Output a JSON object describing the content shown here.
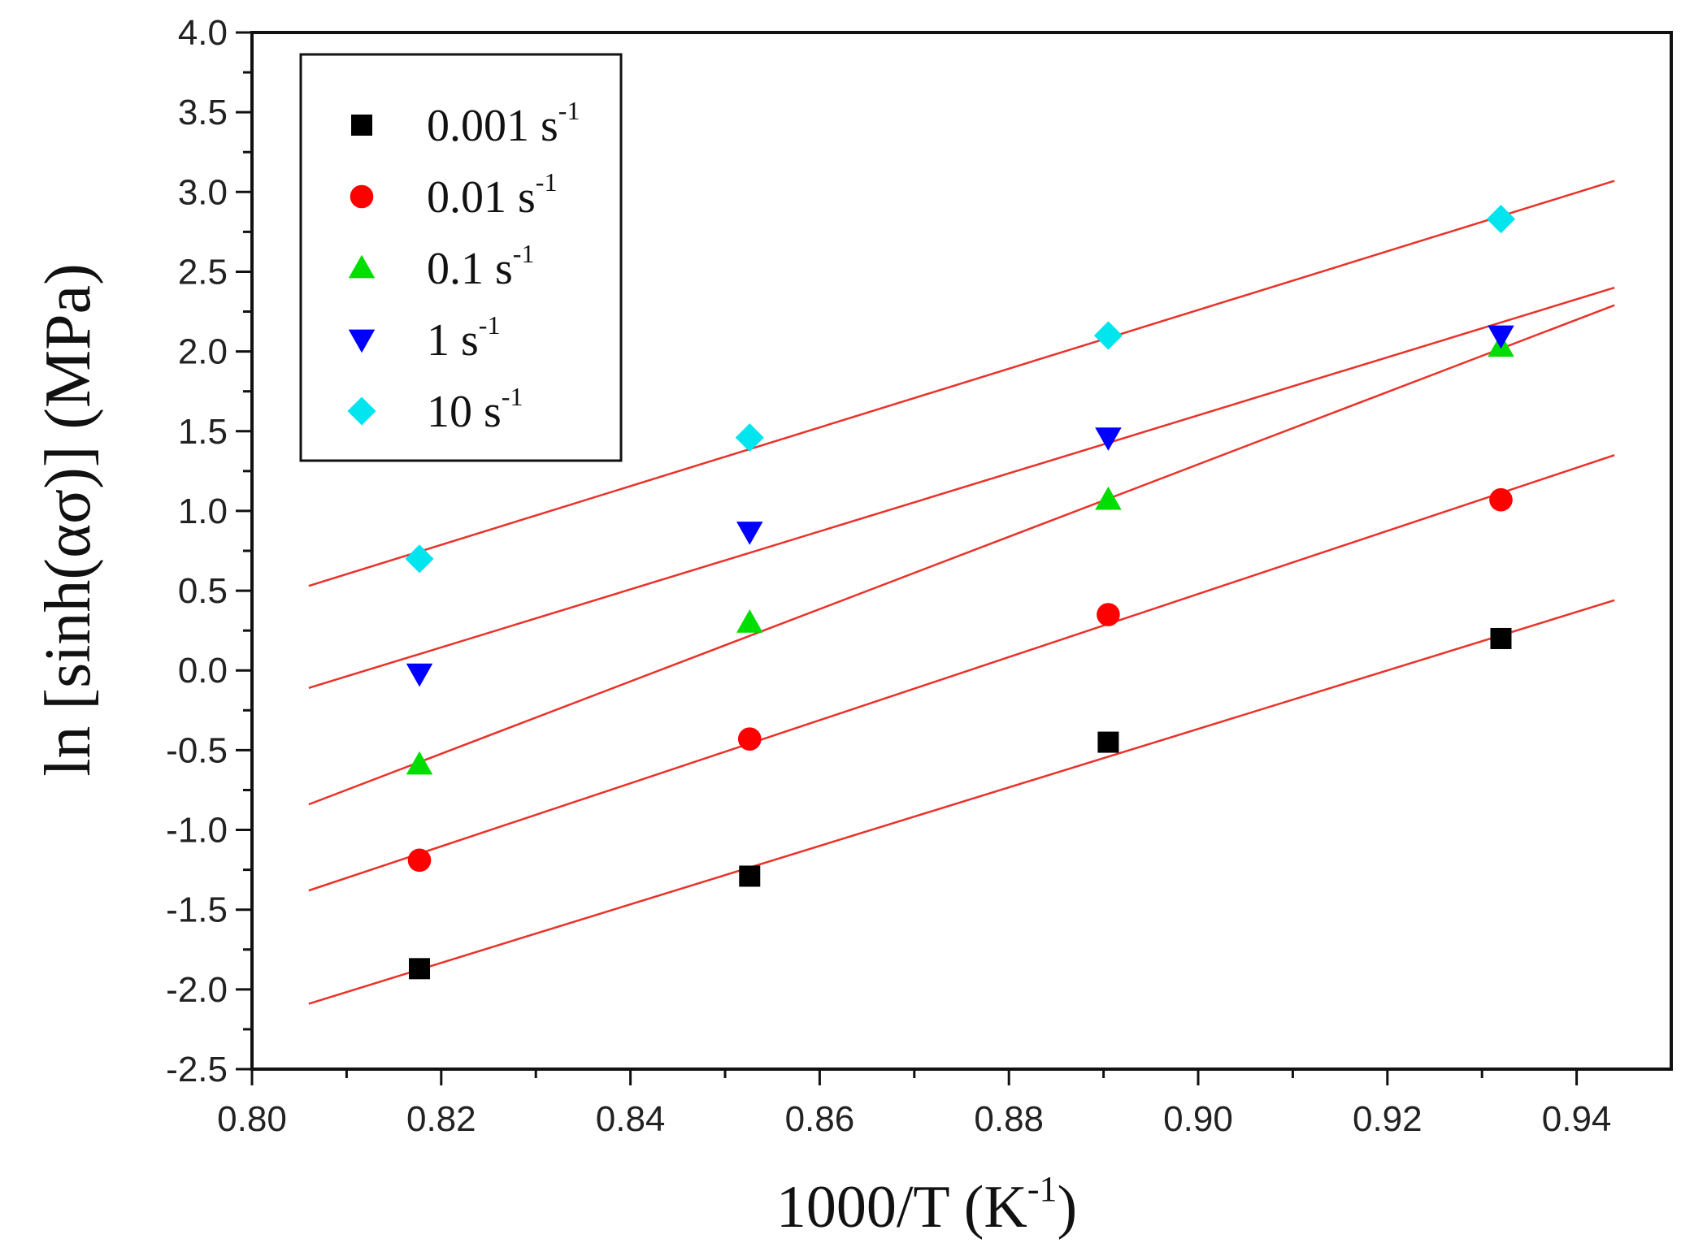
{
  "chart_data": {
    "type": "scatter",
    "title": "",
    "xlabel": "1000/T  (K",
    "xlabel_sup": "-1",
    "xlabel_close": ")",
    "ylabel": "ln [sinh(ασ)]  (MPa)",
    "xlim": [
      0.8,
      0.95
    ],
    "ylim": [
      -2.5,
      4.0
    ],
    "x_ticks": [
      "0.80",
      "0.82",
      "0.84",
      "0.86",
      "0.88",
      "0.90",
      "0.92",
      "0.94"
    ],
    "y_ticks": [
      "-2.5",
      "-2.0",
      "-1.5",
      "-1.0",
      "-0.5",
      "0.0",
      "0.5",
      "1.0",
      "1.5",
      "2.0",
      "2.5",
      "3.0",
      "3.5",
      "4.0"
    ],
    "grid": false,
    "legend_position": "top-left",
    "fit_line_color": "#e8332a",
    "series": [
      {
        "name": "0.001 s",
        "sup": "-1",
        "marker": "square",
        "color": "#000000",
        "x": [
          0.8177,
          0.8526,
          0.8905,
          0.932
        ],
        "y": [
          -1.87,
          -1.29,
          -0.45,
          0.2
        ],
        "fit": [
          [
            0.806,
            -2.09
          ],
          [
            0.944,
            0.44
          ]
        ]
      },
      {
        "name": "0.01 s",
        "sup": "-1",
        "marker": "circle",
        "color": "#ff0000",
        "x": [
          0.8177,
          0.8526,
          0.8905,
          0.932
        ],
        "y": [
          -1.19,
          -0.43,
          0.35,
          1.07
        ],
        "fit": [
          [
            0.806,
            -1.38
          ],
          [
            0.944,
            1.35
          ]
        ]
      },
      {
        "name": "0.1 s",
        "sup": "-1",
        "marker": "triangle-up",
        "color": "#00dd00",
        "x": [
          0.8177,
          0.8526,
          0.8905,
          0.932
        ],
        "y": [
          -0.59,
          0.3,
          1.07,
          2.03
        ],
        "fit": [
          [
            0.806,
            -0.84
          ],
          [
            0.944,
            2.29
          ]
        ]
      },
      {
        "name": "1 s",
        "sup": "-1",
        "marker": "triangle-down",
        "color": "#0000ff",
        "x": [
          0.8177,
          0.8526,
          0.8905,
          0.932
        ],
        "y": [
          -0.02,
          0.87,
          1.46,
          2.1
        ],
        "fit": [
          [
            0.806,
            -0.11
          ],
          [
            0.944,
            2.4
          ]
        ]
      },
      {
        "name": "10 s",
        "sup": "-1",
        "marker": "diamond",
        "color": "#00e5ee",
        "x": [
          0.8177,
          0.8526,
          0.8905,
          0.932
        ],
        "y": [
          0.7,
          1.46,
          2.1,
          2.83
        ],
        "fit": [
          [
            0.806,
            0.53
          ],
          [
            0.944,
            3.07
          ]
        ]
      }
    ]
  }
}
